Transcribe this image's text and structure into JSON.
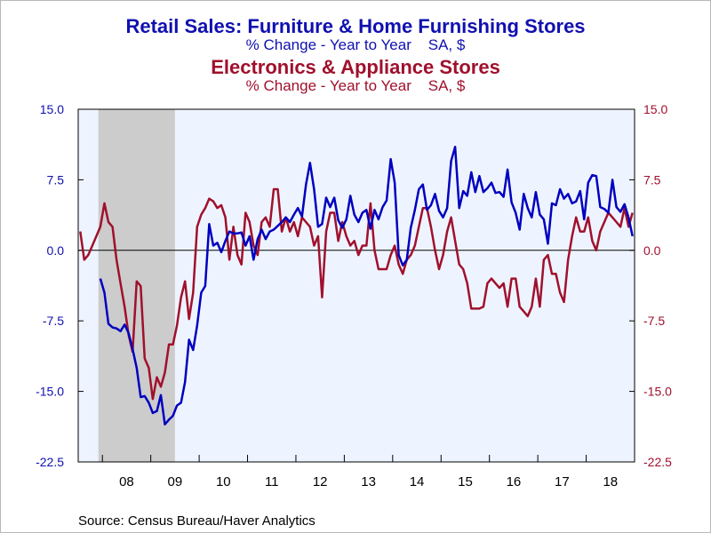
{
  "titles": {
    "series1_title": "Retail Sales: Furniture & Home Furnishing Stores",
    "series1_subtitle": "% Change - Year to Year    SA, $",
    "series2_title": "Electronics & Appliance Stores",
    "series2_subtitle": "% Change - Year to Year    SA, $"
  },
  "source": "Source:  Census Bureau/Haver Analytics",
  "colors": {
    "series1": "#0000c0",
    "series2": "#a0102c",
    "plot_bg": "#eef4ff",
    "recession": "#cccccc"
  },
  "chart_data": {
    "type": "line",
    "x_start": "2007-07",
    "x_end": "2018-12",
    "x_tick_labels": [
      "08",
      "09",
      "10",
      "11",
      "12",
      "13",
      "14",
      "15",
      "16",
      "17",
      "18"
    ],
    "left_axis": {
      "ticks": [
        "15.0",
        "7.5",
        "0.0",
        "-7.5",
        "-15.0",
        "-22.5"
      ],
      "ylim": [
        -22.5,
        15.0
      ]
    },
    "right_axis": {
      "ticks": [
        "15.0",
        "7.5",
        "0.0",
        "-7.5",
        "-15.0",
        "-22.5"
      ],
      "ylim": [
        -22.5,
        15.0
      ]
    },
    "recession_shading": {
      "start": "2007-12",
      "end": "2009-06"
    },
    "zero_line": true,
    "legend": "titles above chart",
    "series": [
      {
        "name": "Retail Sales: Furniture & Home Furnishing Stores",
        "color": "#0000c0",
        "axis": "left",
        "points": [
          [
            "2007-12",
            -3.0
          ],
          [
            "2008-01",
            -4.5
          ],
          [
            "2008-02",
            -7.8
          ],
          [
            "2008-03",
            -8.2
          ],
          [
            "2008-04",
            -8.3
          ],
          [
            "2008-05",
            -8.6
          ],
          [
            "2008-06",
            -7.9
          ],
          [
            "2008-07",
            -8.8
          ],
          [
            "2008-08",
            -10.5
          ],
          [
            "2008-09",
            -12.5
          ],
          [
            "2008-10",
            -15.6
          ],
          [
            "2008-11",
            -15.5
          ],
          [
            "2008-12",
            -16.2
          ],
          [
            "2009-01",
            -17.3
          ],
          [
            "2009-02",
            -17.1
          ],
          [
            "2009-03",
            -15.4
          ],
          [
            "2009-04",
            -18.5
          ],
          [
            "2009-05",
            -18.0
          ],
          [
            "2009-06",
            -17.6
          ],
          [
            "2009-07",
            -16.5
          ],
          [
            "2009-08",
            -16.2
          ],
          [
            "2009-09",
            -14.0
          ],
          [
            "2009-10",
            -9.5
          ],
          [
            "2009-11",
            -10.6
          ],
          [
            "2009-12",
            -8.0
          ],
          [
            "2010-01",
            -4.5
          ],
          [
            "2010-02",
            -3.8
          ],
          [
            "2010-03",
            2.8
          ],
          [
            "2010-04",
            0.5
          ],
          [
            "2010-05",
            0.8
          ],
          [
            "2010-06",
            -0.2
          ],
          [
            "2010-07",
            1.0
          ],
          [
            "2010-08",
            2.0
          ],
          [
            "2010-09",
            1.8
          ],
          [
            "2010-10",
            1.8
          ],
          [
            "2010-11",
            1.9
          ],
          [
            "2010-12",
            0.5
          ],
          [
            "2011-01",
            1.5
          ],
          [
            "2011-02",
            -1.0
          ],
          [
            "2011-03",
            1.2
          ],
          [
            "2011-04",
            2.2
          ],
          [
            "2011-05",
            1.2
          ],
          [
            "2011-06",
            2.0
          ],
          [
            "2011-07",
            2.2
          ],
          [
            "2011-08",
            2.6
          ],
          [
            "2011-09",
            3.0
          ],
          [
            "2011-10",
            3.5
          ],
          [
            "2011-11",
            3.0
          ],
          [
            "2011-12",
            3.8
          ],
          [
            "2012-01",
            4.5
          ],
          [
            "2012-02",
            3.6
          ],
          [
            "2012-03",
            7.0
          ],
          [
            "2012-04",
            9.3
          ],
          [
            "2012-05",
            6.5
          ],
          [
            "2012-06",
            2.5
          ],
          [
            "2012-07",
            2.8
          ],
          [
            "2012-08",
            5.6
          ],
          [
            "2012-09",
            4.6
          ],
          [
            "2012-10",
            5.6
          ],
          [
            "2012-11",
            3.2
          ],
          [
            "2012-12",
            2.4
          ],
          [
            "2013-01",
            3.3
          ],
          [
            "2013-02",
            5.8
          ],
          [
            "2013-03",
            3.8
          ],
          [
            "2013-04",
            3.0
          ],
          [
            "2013-05",
            4.0
          ],
          [
            "2013-06",
            4.3
          ],
          [
            "2013-07",
            2.3
          ],
          [
            "2013-08",
            4.3
          ],
          [
            "2013-09",
            3.3
          ],
          [
            "2013-10",
            4.6
          ],
          [
            "2013-11",
            5.3
          ],
          [
            "2013-12",
            9.7
          ],
          [
            "2014-01",
            7.2
          ],
          [
            "2014-02",
            -0.5
          ],
          [
            "2014-03",
            -1.6
          ],
          [
            "2014-04",
            -1.0
          ],
          [
            "2014-05",
            2.4
          ],
          [
            "2014-06",
            4.3
          ],
          [
            "2014-07",
            6.5
          ],
          [
            "2014-08",
            7.0
          ],
          [
            "2014-09",
            4.3
          ],
          [
            "2014-10",
            4.8
          ],
          [
            "2014-11",
            6.0
          ],
          [
            "2014-12",
            4.2
          ],
          [
            "2015-01",
            3.5
          ],
          [
            "2015-02",
            4.5
          ],
          [
            "2015-03",
            9.5
          ],
          [
            "2015-04",
            11.0
          ],
          [
            "2015-05",
            4.5
          ],
          [
            "2015-06",
            6.3
          ],
          [
            "2015-07",
            5.8
          ],
          [
            "2015-08",
            8.3
          ],
          [
            "2015-09",
            6.2
          ],
          [
            "2015-10",
            7.9
          ],
          [
            "2015-11",
            6.2
          ],
          [
            "2015-12",
            6.6
          ],
          [
            "2016-01",
            7.2
          ],
          [
            "2016-02",
            6.1
          ],
          [
            "2016-03",
            6.2
          ],
          [
            "2016-04",
            5.7
          ],
          [
            "2016-05",
            8.6
          ],
          [
            "2016-06",
            5.1
          ],
          [
            "2016-07",
            4.0
          ],
          [
            "2016-08",
            2.2
          ],
          [
            "2016-09",
            6.0
          ],
          [
            "2016-10",
            4.5
          ],
          [
            "2016-11",
            3.5
          ],
          [
            "2016-12",
            6.2
          ],
          [
            "2017-01",
            3.8
          ],
          [
            "2017-02",
            3.3
          ],
          [
            "2017-03",
            0.7
          ],
          [
            "2017-04",
            5.0
          ],
          [
            "2017-05",
            4.8
          ],
          [
            "2017-06",
            6.5
          ],
          [
            "2017-07",
            5.5
          ],
          [
            "2017-08",
            6.0
          ],
          [
            "2017-09",
            5.0
          ],
          [
            "2017-10",
            5.2
          ],
          [
            "2017-11",
            6.3
          ],
          [
            "2017-12",
            3.3
          ],
          [
            "2018-01",
            7.2
          ],
          [
            "2018-02",
            8.0
          ],
          [
            "2018-03",
            7.9
          ],
          [
            "2018-04",
            4.6
          ],
          [
            "2018-05",
            4.4
          ],
          [
            "2018-06",
            4.0
          ],
          [
            "2018-07",
            7.5
          ],
          [
            "2018-08",
            4.6
          ],
          [
            "2018-09",
            4.1
          ],
          [
            "2018-10",
            4.9
          ],
          [
            "2018-11",
            3.5
          ],
          [
            "2018-12",
            1.5
          ]
        ]
      },
      {
        "name": "Electronics & Appliance Stores",
        "color": "#a0102c",
        "axis": "right",
        "points": [
          [
            "2007-07",
            2.0
          ],
          [
            "2007-08",
            -1.0
          ],
          [
            "2007-09",
            -0.5
          ],
          [
            "2007-10",
            0.5
          ],
          [
            "2007-11",
            1.5
          ],
          [
            "2007-12",
            2.5
          ],
          [
            "2008-01",
            5.0
          ],
          [
            "2008-02",
            3.0
          ],
          [
            "2008-03",
            2.5
          ],
          [
            "2008-04",
            -1.0
          ],
          [
            "2008-05",
            -3.5
          ],
          [
            "2008-06",
            -6.0
          ],
          [
            "2008-07",
            -9.0
          ],
          [
            "2008-08",
            -10.8
          ],
          [
            "2008-09",
            -3.3
          ],
          [
            "2008-10",
            -3.8
          ],
          [
            "2008-11",
            -11.5
          ],
          [
            "2008-12",
            -12.5
          ],
          [
            "2009-01",
            -15.8
          ],
          [
            "2009-02",
            -13.5
          ],
          [
            "2009-03",
            -14.5
          ],
          [
            "2009-04",
            -13.0
          ],
          [
            "2009-05",
            -10.0
          ],
          [
            "2009-06",
            -10.0
          ],
          [
            "2009-07",
            -8.0
          ],
          [
            "2009-08",
            -5.0
          ],
          [
            "2009-09",
            -3.3
          ],
          [
            "2009-10",
            -7.3
          ],
          [
            "2009-11",
            -4.5
          ],
          [
            "2009-12",
            2.5
          ],
          [
            "2010-01",
            3.8
          ],
          [
            "2010-02",
            4.5
          ],
          [
            "2010-03",
            5.5
          ],
          [
            "2010-04",
            5.2
          ],
          [
            "2010-05",
            4.5
          ],
          [
            "2010-06",
            4.8
          ],
          [
            "2010-07",
            3.5
          ],
          [
            "2010-08",
            -1.0
          ],
          [
            "2010-09",
            2.5
          ],
          [
            "2010-10",
            -0.5
          ],
          [
            "2010-11",
            -1.5
          ],
          [
            "2010-12",
            4.0
          ],
          [
            "2011-01",
            3.0
          ],
          [
            "2011-02",
            0.5
          ],
          [
            "2011-03",
            -0.5
          ],
          [
            "2011-04",
            3.0
          ],
          [
            "2011-05",
            3.5
          ],
          [
            "2011-06",
            2.5
          ],
          [
            "2011-07",
            6.5
          ],
          [
            "2011-08",
            6.5
          ],
          [
            "2011-09",
            2.0
          ],
          [
            "2011-10",
            3.5
          ],
          [
            "2011-11",
            2.0
          ],
          [
            "2011-12",
            3.0
          ],
          [
            "2012-01",
            1.5
          ],
          [
            "2012-02",
            3.5
          ],
          [
            "2012-03",
            3.0
          ],
          [
            "2012-04",
            2.5
          ],
          [
            "2012-05",
            0.5
          ],
          [
            "2012-06",
            1.5
          ],
          [
            "2012-07",
            -5.0
          ],
          [
            "2012-08",
            2.0
          ],
          [
            "2012-09",
            4.0
          ],
          [
            "2012-10",
            4.0
          ],
          [
            "2012-11",
            1.0
          ],
          [
            "2012-12",
            3.0
          ],
          [
            "2013-01",
            1.5
          ],
          [
            "2013-02",
            0.5
          ],
          [
            "2013-03",
            1.0
          ],
          [
            "2013-04",
            -0.5
          ],
          [
            "2013-05",
            0.5
          ],
          [
            "2013-06",
            0.5
          ],
          [
            "2013-07",
            5.0
          ],
          [
            "2013-08",
            0.0
          ],
          [
            "2013-09",
            -2.0
          ],
          [
            "2013-10",
            -2.0
          ],
          [
            "2013-11",
            -2.0
          ],
          [
            "2013-12",
            -0.5
          ],
          [
            "2014-01",
            0.5
          ],
          [
            "2014-02",
            -1.5
          ],
          [
            "2014-03",
            -2.5
          ],
          [
            "2014-04",
            -1.0
          ],
          [
            "2014-05",
            -0.5
          ],
          [
            "2014-06",
            0.5
          ],
          [
            "2014-07",
            2.5
          ],
          [
            "2014-08",
            4.5
          ],
          [
            "2014-09",
            4.5
          ],
          [
            "2014-10",
            2.5
          ],
          [
            "2014-11",
            0.0
          ],
          [
            "2014-12",
            -2.0
          ],
          [
            "2015-01",
            -0.5
          ],
          [
            "2015-02",
            2.0
          ],
          [
            "2015-03",
            3.5
          ],
          [
            "2015-04",
            1.0
          ],
          [
            "2015-05",
            -1.5
          ],
          [
            "2015-06",
            -2.0
          ],
          [
            "2015-07",
            -3.5
          ],
          [
            "2015-08",
            -6.2
          ],
          [
            "2015-09",
            -6.2
          ],
          [
            "2015-10",
            -6.2
          ],
          [
            "2015-11",
            -6.0
          ],
          [
            "2015-12",
            -3.5
          ],
          [
            "2016-01",
            -3.0
          ],
          [
            "2016-02",
            -3.5
          ],
          [
            "2016-03",
            -4.0
          ],
          [
            "2016-04",
            -3.5
          ],
          [
            "2016-05",
            -6.0
          ],
          [
            "2016-06",
            -3.0
          ],
          [
            "2016-07",
            -3.0
          ],
          [
            "2016-08",
            -6.0
          ],
          [
            "2016-09",
            -6.5
          ],
          [
            "2016-10",
            -7.0
          ],
          [
            "2016-11",
            -6.0
          ],
          [
            "2016-12",
            -3.0
          ],
          [
            "2017-01",
            -6.0
          ],
          [
            "2017-02",
            -1.0
          ],
          [
            "2017-03",
            -0.5
          ],
          [
            "2017-04",
            -2.5
          ],
          [
            "2017-05",
            -2.5
          ],
          [
            "2017-06",
            -4.5
          ],
          [
            "2017-07",
            -5.5
          ],
          [
            "2017-08",
            -1.0
          ],
          [
            "2017-09",
            1.5
          ],
          [
            "2017-10",
            3.5
          ],
          [
            "2017-11",
            2.0
          ],
          [
            "2017-12",
            2.0
          ],
          [
            "2018-01",
            3.5
          ],
          [
            "2018-02",
            1.0
          ],
          [
            "2018-03",
            0.0
          ],
          [
            "2018-04",
            2.0
          ],
          [
            "2018-05",
            3.0
          ],
          [
            "2018-06",
            4.0
          ],
          [
            "2018-07",
            3.5
          ],
          [
            "2018-08",
            3.0
          ],
          [
            "2018-09",
            2.5
          ],
          [
            "2018-10",
            4.5
          ],
          [
            "2018-11",
            2.5
          ],
          [
            "2018-12",
            4.0
          ]
        ]
      }
    ]
  }
}
